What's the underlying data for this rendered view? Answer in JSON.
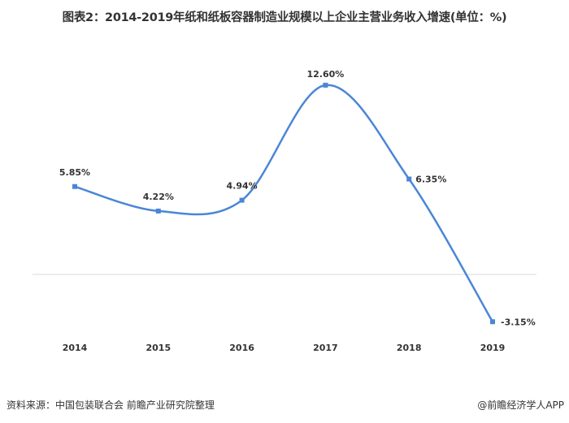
{
  "chart_data": {
    "type": "line",
    "title": "图表2：2014-2019年纸和纸板容器制造业规模以上企业主营业务收入增速(单位：%)",
    "categories": [
      "2014",
      "2015",
      "2016",
      "2017",
      "2018",
      "2019"
    ],
    "series": [
      {
        "values": [
          5.85,
          4.22,
          4.94,
          12.6,
          6.35,
          -3.15
        ]
      }
    ],
    "data_labels": [
      "5.85%",
      "4.22%",
      "4.94%",
      "12.60%",
      "6.35%",
      "-3.15%"
    ],
    "line_color": "#4a86d6",
    "smooth": true,
    "grid": false
  },
  "footer": {
    "source": "资料来源：中国包装联合会 前瞻产业研究院整理",
    "credit": "@前瞻经济学人APP"
  }
}
